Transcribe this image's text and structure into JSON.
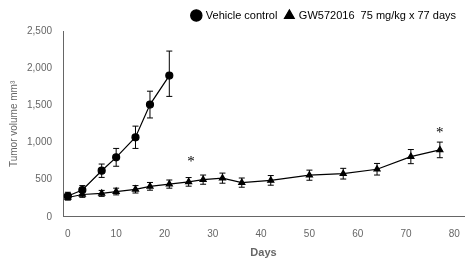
{
  "chart_data": {
    "type": "line",
    "xlabel": "Days",
    "ylabel": "Tumor volume mm³",
    "series": [
      {
        "name": "Vehicle control",
        "color": "#000000",
        "marker": "circle",
        "x": [
          0,
          3,
          7,
          10,
          14,
          17,
          21
        ],
        "values": [
          280,
          360,
          620,
          800,
          1070,
          1510,
          1900
        ],
        "error_lo": [
          50,
          60,
          90,
          120,
          150,
          180,
          280
        ],
        "error_hi": [
          50,
          60,
          90,
          120,
          150,
          180,
          330
        ]
      },
      {
        "name": "GW572016  75 mg/kg x 77 days",
        "color": "#000000",
        "marker": "triangle",
        "x": [
          0,
          3,
          7,
          10,
          14,
          17,
          21,
          25,
          28,
          32,
          36,
          42,
          50,
          57,
          64,
          71,
          77
        ],
        "values": [
          260,
          300,
          315,
          340,
          370,
          410,
          440,
          470,
          500,
          520,
          460,
          490,
          560,
          580,
          640,
          810,
          900
        ],
        "error_lo": [
          35,
          38,
          40,
          45,
          50,
          52,
          55,
          58,
          62,
          68,
          62,
          65,
          68,
          72,
          78,
          95,
          105
        ],
        "error_hi": [
          35,
          38,
          40,
          45,
          50,
          52,
          55,
          58,
          62,
          68,
          62,
          65,
          68,
          72,
          78,
          95,
          105
        ]
      }
    ],
    "annotations": [
      {
        "text": "*",
        "x": 25.5,
        "y": 630
      },
      {
        "text": "*",
        "x": 77,
        "y": 1030
      }
    ],
    "xlim": [
      -1,
      82
    ],
    "ylim": [
      0,
      2500
    ],
    "xticks": [
      0,
      10,
      20,
      30,
      40,
      50,
      60,
      70,
      80
    ],
    "yticks": [
      0,
      500,
      1000,
      1500,
      2000,
      2500
    ],
    "grid": false,
    "legend": "upper right"
  }
}
